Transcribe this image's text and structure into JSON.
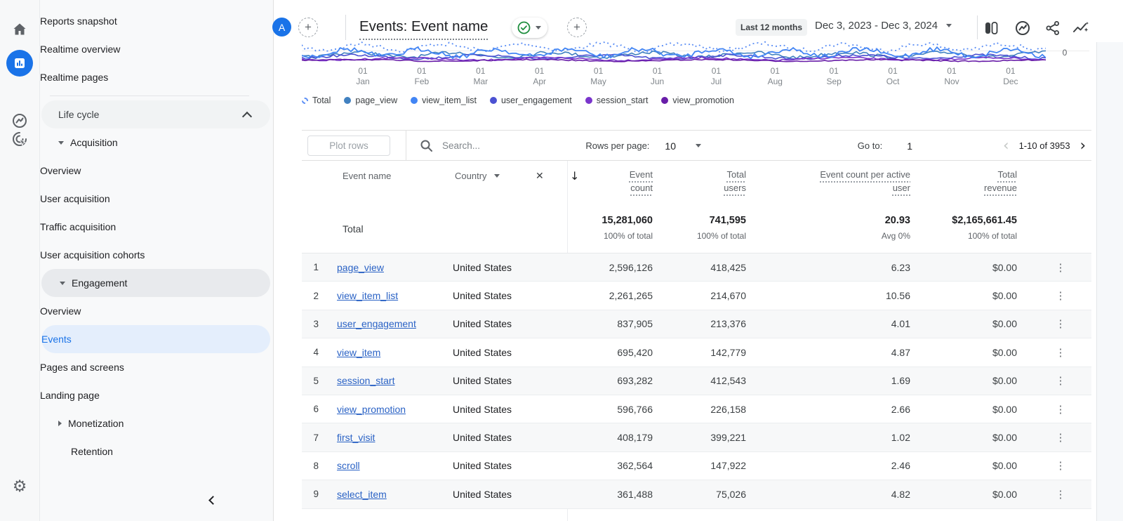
{
  "rail": {
    "icons": [
      {
        "name": "home-icon",
        "active": false
      },
      {
        "name": "reports-icon",
        "active": true
      },
      {
        "name": "explore-icon",
        "active": false
      },
      {
        "name": "advertising-icon",
        "active": false
      }
    ],
    "settings_icon": "gear-icon"
  },
  "sidebar": {
    "items": [
      {
        "type": "link0",
        "label": "Reports snapshot"
      },
      {
        "type": "link0",
        "label": "Realtime overview"
      },
      {
        "type": "link0",
        "label": "Realtime pages"
      },
      {
        "type": "divider"
      },
      {
        "type": "section",
        "label": "Life cycle",
        "chevron": "up"
      },
      {
        "type": "group",
        "label": "Acquisition",
        "state": "expanded"
      },
      {
        "type": "link2",
        "label": "Overview"
      },
      {
        "type": "link2",
        "label": "User acquisition"
      },
      {
        "type": "link2",
        "label": "Traffic acquisition"
      },
      {
        "type": "link2",
        "label": "User acquisition cohorts"
      },
      {
        "type": "group",
        "label": "Engagement",
        "state": "expanded",
        "highlight": "gray"
      },
      {
        "type": "link2",
        "label": "Overview"
      },
      {
        "type": "link2",
        "label": "Events",
        "highlight": "blue"
      },
      {
        "type": "link2",
        "label": "Pages and screens"
      },
      {
        "type": "link2",
        "label": "Landing page"
      },
      {
        "type": "group",
        "label": "Monetization",
        "state": "collapsed"
      },
      {
        "type": "group",
        "label": "Retention",
        "state": "none"
      }
    ]
  },
  "header": {
    "avatar": "A",
    "plus": "+",
    "title": "Events: Event name",
    "date_preset": "Last 12 months",
    "date_range": "Dec 3, 2023 - Dec 3, 2024"
  },
  "chart": {
    "y_axis_label": "0",
    "x_labels": [
      {
        "line1": "01",
        "line2": "Jan"
      },
      {
        "line1": "01",
        "line2": "Feb"
      },
      {
        "line1": "01",
        "line2": "Mar"
      },
      {
        "line1": "01",
        "line2": "Apr"
      },
      {
        "line1": "01",
        "line2": "May"
      },
      {
        "line1": "01",
        "line2": "Jun"
      },
      {
        "line1": "01",
        "line2": "Jul"
      },
      {
        "line1": "01",
        "line2": "Aug"
      },
      {
        "line1": "01",
        "line2": "Sep"
      },
      {
        "line1": "01",
        "line2": "Oct"
      },
      {
        "line1": "01",
        "line2": "Nov"
      },
      {
        "line1": "01",
        "line2": "Dec"
      }
    ],
    "legend": [
      {
        "label": "Total",
        "color": "#5a8df5",
        "style": "dashed"
      },
      {
        "label": "page_view",
        "color": "#4181c0",
        "style": "solid"
      },
      {
        "label": "view_item_list",
        "color": "#4285f4",
        "style": "solid"
      },
      {
        "label": "user_engagement",
        "color": "#4b51d2",
        "style": "solid"
      },
      {
        "label": "session_start",
        "color": "#7a35cc",
        "style": "solid"
      },
      {
        "label": "view_promotion",
        "color": "#681da8",
        "style": "solid"
      }
    ]
  },
  "controls": {
    "plot_rows": "Plot rows",
    "search_placeholder": "Search...",
    "rows_per_page_label": "Rows per page:",
    "rows_per_page_value": "10",
    "go_to_label": "Go to:",
    "go_to_value": "1",
    "range": "1-10 of 3953"
  },
  "table": {
    "dim_headers": [
      "Event name",
      "Country"
    ],
    "metric_headers": [
      "Event count",
      "Total users",
      "Event count per active user",
      "Total revenue"
    ],
    "totals": {
      "label": "Total",
      "metrics": [
        {
          "value": "15,281,060",
          "sub": "100% of total"
        },
        {
          "value": "741,595",
          "sub": "100% of total"
        },
        {
          "value": "20.93",
          "sub": "Avg 0%"
        },
        {
          "value": "$2,165,661.45",
          "sub": "100% of total"
        }
      ]
    },
    "rows": [
      {
        "index": "1",
        "event": "page_view",
        "country": "United States",
        "metrics": [
          "2,596,126",
          "418,425",
          "6.23",
          "$0.00"
        ]
      },
      {
        "index": "2",
        "event": "view_item_list",
        "country": "United States",
        "metrics": [
          "2,261,265",
          "214,670",
          "10.56",
          "$0.00"
        ]
      },
      {
        "index": "3",
        "event": "user_engagement",
        "country": "United States",
        "metrics": [
          "837,905",
          "213,376",
          "4.01",
          "$0.00"
        ]
      },
      {
        "index": "4",
        "event": "view_item",
        "country": "United States",
        "metrics": [
          "695,420",
          "142,779",
          "4.87",
          "$0.00"
        ]
      },
      {
        "index": "5",
        "event": "session_start",
        "country": "United States",
        "metrics": [
          "693,282",
          "412,543",
          "1.69",
          "$0.00"
        ]
      },
      {
        "index": "6",
        "event": "view_promotion",
        "country": "United States",
        "metrics": [
          "596,766",
          "226,158",
          "2.66",
          "$0.00"
        ]
      },
      {
        "index": "7",
        "event": "first_visit",
        "country": "United States",
        "metrics": [
          "408,179",
          "399,221",
          "1.02",
          "$0.00"
        ]
      },
      {
        "index": "8",
        "event": "scroll",
        "country": "United States",
        "metrics": [
          "362,564",
          "147,922",
          "2.46",
          "$0.00"
        ]
      },
      {
        "index": "9",
        "event": "select_item",
        "country": "United States",
        "metrics": [
          "361,488",
          "75,026",
          "4.82",
          "$0.00"
        ]
      }
    ]
  }
}
